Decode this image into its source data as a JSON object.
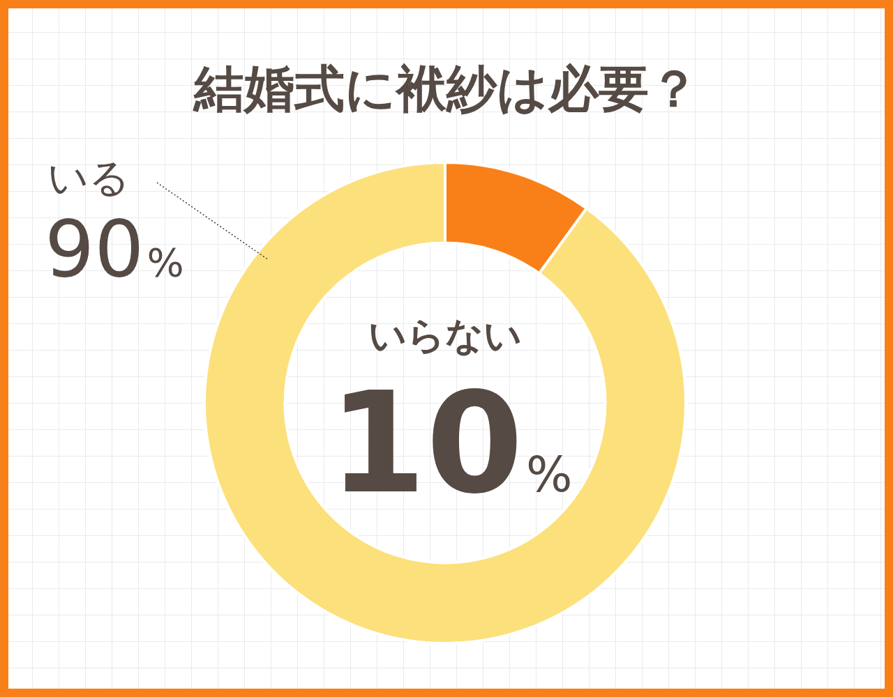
{
  "chart_data": {
    "type": "donut",
    "title": "結婚式に袱紗は必要？",
    "categories": [
      "いらない",
      "いる"
    ],
    "values": [
      10,
      90
    ],
    "colors": [
      "#f98018",
      "#fce07b"
    ],
    "value_labels": [
      "10%",
      "90%"
    ]
  }
}
